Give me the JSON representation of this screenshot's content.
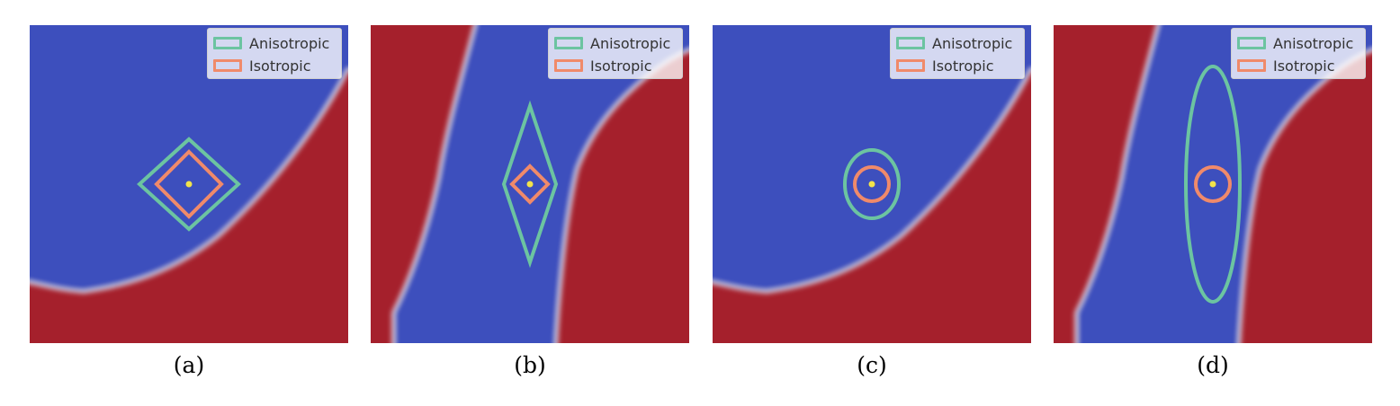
{
  "colors": {
    "blue": "#3d4fbd",
    "red": "#a5202c",
    "anisotropic": "#6cc4a1",
    "isotropic": "#f08a6a",
    "point": "#f2e34a"
  },
  "legend": {
    "anisotropic": "Anisotropic",
    "isotropic": "Isotropic"
  },
  "panels": [
    {
      "id": "a",
      "caption": "(a)"
    },
    {
      "id": "b",
      "caption": "(b)"
    },
    {
      "id": "c",
      "caption": "(c)"
    },
    {
      "id": "d",
      "caption": "(d)"
    }
  ]
}
